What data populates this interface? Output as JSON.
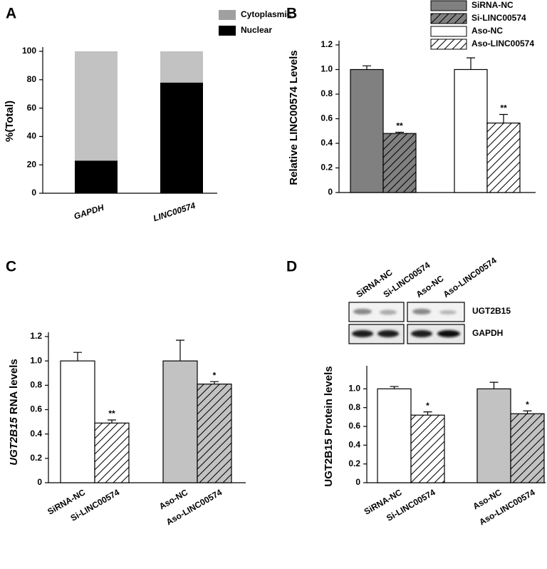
{
  "chart_data": [
    {
      "type": "stacked_bar",
      "panel": "A",
      "ylabel": "%(Total)",
      "categories": [
        "GAPDH",
        "LINC00574"
      ],
      "series": [
        {
          "name": "Nuclear",
          "color": "#000000",
          "values": [
            23,
            78
          ]
        },
        {
          "name": "Cytoplasmic",
          "color": "#c2c2c2",
          "values": [
            77,
            22
          ]
        }
      ],
      "ylim": [
        0,
        100
      ],
      "yticks": [
        0,
        20,
        40,
        60,
        80,
        100
      ]
    },
    {
      "type": "bar",
      "panel": "B",
      "ylabel": "Relative LINC00574 Levels",
      "series": [
        {
          "name": "SiRNA-NC",
          "color": "#808080",
          "hatched": false,
          "values": [
            1.0
          ],
          "errors": [
            0.03
          ]
        },
        {
          "name": "Si-LINC00574",
          "color": "#808080",
          "hatched": true,
          "values": [
            0.48
          ],
          "errors": [
            0.01
          ],
          "annotations": [
            "**"
          ]
        },
        {
          "name": "Aso-NC",
          "color": "#ffffff",
          "hatched": false,
          "values": [
            1.0
          ],
          "errors": [
            0.095
          ]
        },
        {
          "name": "Aso-LINC00574",
          "color": "#ffffff",
          "hatched": true,
          "values": [
            0.565
          ],
          "errors": [
            0.07
          ],
          "annotations": [
            "**"
          ]
        }
      ],
      "ylim": [
        0,
        1.2
      ],
      "yticks": [
        0,
        0.2,
        0.4,
        0.6,
        0.8,
        {
          "value": 1,
          "label": "1.0"
        },
        1.2
      ]
    },
    {
      "type": "bar",
      "panel": "C",
      "ylabel_gene": "UGT2B15",
      "ylabel": "RNA levels",
      "categories": [
        "SiRNA-NC",
        "Si-LINC00574",
        "Aso-NC",
        "Aso-LINC00574"
      ],
      "values": [
        1.0,
        0.49,
        1.0,
        0.81
      ],
      "errors": [
        0.07,
        0.025,
        0.17,
        0.02
      ],
      "annotations": [
        null,
        "**",
        null,
        "*"
      ],
      "colors": [
        "#ffffff",
        "#ffffff",
        "#c2c2c2",
        "#c2c2c2"
      ],
      "hatched": [
        false,
        true,
        false,
        true
      ],
      "ylim": [
        0,
        1.2
      ],
      "yticks": [
        0,
        0.2,
        0.4,
        0.6,
        0.8,
        {
          "value": 1,
          "label": "1.0"
        },
        1.2
      ]
    },
    {
      "type": "bar",
      "panel": "D",
      "ylabel": "UGT2B15 Protein levels",
      "blot": {
        "lanes": [
          "SiRNA-NC",
          "Si-LINC00574",
          "Aso-NC",
          "Aso-LINC00574"
        ],
        "bands": [
          "UGT2B15",
          "GAPDH"
        ]
      },
      "categories": [
        "SiRNA-NC",
        "Si-LINC00574",
        "Aso-NC",
        "Aso-LINC00574"
      ],
      "values": [
        1.0,
        0.72,
        1.0,
        0.735
      ],
      "errors": [
        0.025,
        0.035,
        0.07,
        0.03
      ],
      "annotations": [
        null,
        "*",
        null,
        "*"
      ],
      "colors": [
        "#ffffff",
        "#ffffff",
        "#c2c2c2",
        "#c2c2c2"
      ],
      "hatched": [
        false,
        true,
        false,
        true
      ],
      "ylim": [
        0,
        1.2
      ],
      "yticks": [
        0,
        0.2,
        0.4,
        0.6,
        0.8,
        {
          "value": 1,
          "label": "1.0"
        }
      ]
    }
  ]
}
